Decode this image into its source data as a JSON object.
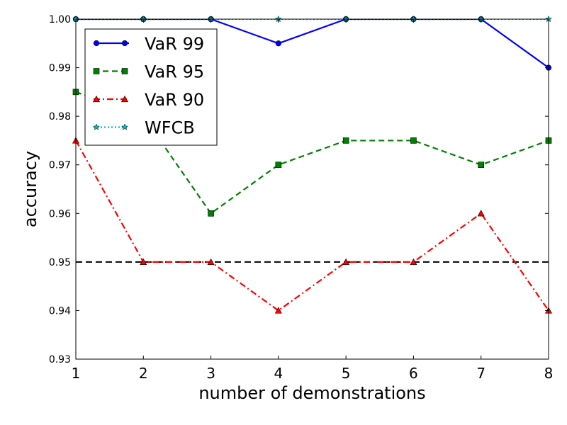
{
  "chart_data": {
    "type": "line",
    "title": "",
    "xlabel": "number of demonstrations",
    "ylabel": "accuracy",
    "x": [
      1,
      2,
      3,
      4,
      5,
      6,
      7,
      8
    ],
    "xlim": [
      1,
      8
    ],
    "ylim": [
      0.93,
      1.0
    ],
    "xticks": [
      "1",
      "2",
      "3",
      "4",
      "5",
      "6",
      "7",
      "8"
    ],
    "yticks": [
      "0.93",
      "0.94",
      "0.95",
      "0.96",
      "0.97",
      "0.98",
      "0.99",
      "1.00"
    ],
    "grid": false,
    "legend_position": "top-left",
    "reference_line": {
      "y": 0.95,
      "style": "dashed",
      "color": "#000000"
    },
    "series": [
      {
        "name": "VaR 99",
        "color": "#0000ff",
        "line_style": "solid",
        "marker": "circle",
        "values": [
          1.0,
          1.0,
          1.0,
          0.995,
          1.0,
          1.0,
          1.0,
          0.99
        ]
      },
      {
        "name": "VaR 95",
        "color": "#008000",
        "line_style": "dashed",
        "marker": "square",
        "values": [
          0.985,
          0.98,
          0.96,
          0.97,
          0.975,
          0.975,
          0.97,
          0.975
        ]
      },
      {
        "name": "VaR 90",
        "color": "#ff0000",
        "line_style": "dashdot",
        "marker": "triangle",
        "values": [
          0.975,
          0.95,
          0.95,
          0.94,
          0.95,
          0.95,
          0.96,
          0.94
        ]
      },
      {
        "name": "WFCB",
        "color": "#00bfbf",
        "line_style": "dotted",
        "marker": "star",
        "values": [
          1.0,
          1.0,
          1.0,
          1.0,
          1.0,
          1.0,
          1.0,
          1.0
        ]
      }
    ]
  }
}
